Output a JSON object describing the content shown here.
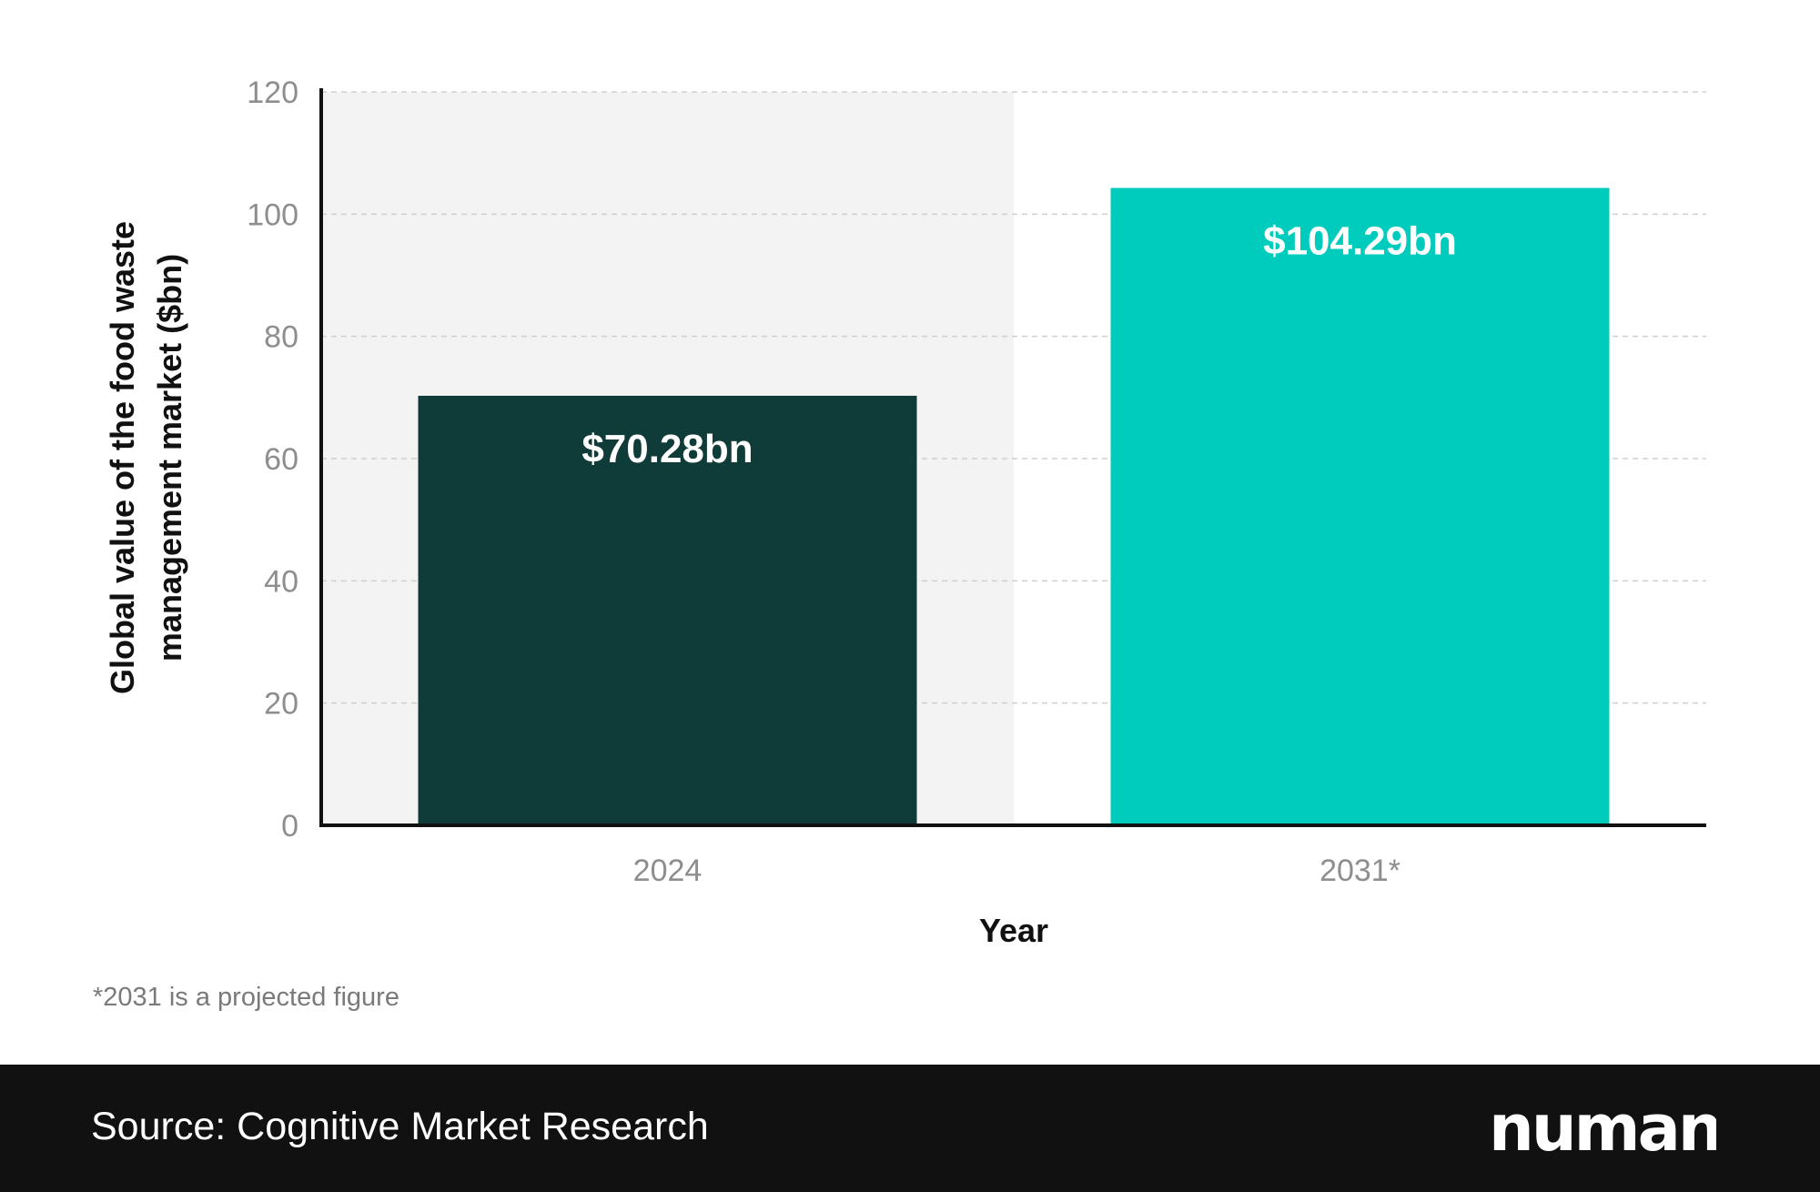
{
  "chart_data": {
    "type": "bar",
    "categories": [
      "2024",
      "2031*"
    ],
    "values": [
      70.28,
      104.29
    ],
    "data_labels": [
      "$70.28bn",
      "$104.29bn"
    ],
    "bar_colors": [
      "#0f3b38",
      "#00ccbe"
    ],
    "xlabel": "Year",
    "ylabel_lines": [
      "Global value of the food waste",
      "management market ($bn)"
    ],
    "ylim": [
      0,
      120
    ],
    "yticks": [
      0,
      20,
      40,
      60,
      80,
      100,
      120
    ],
    "grid": true,
    "highlight_category": "2024",
    "highlight_color": "#f3f3f3"
  },
  "footnote": "*2031 is a projected figure",
  "footer": {
    "source": "Source: Cognitive Market Research",
    "logo_text": "numan",
    "background": "#111111"
  }
}
